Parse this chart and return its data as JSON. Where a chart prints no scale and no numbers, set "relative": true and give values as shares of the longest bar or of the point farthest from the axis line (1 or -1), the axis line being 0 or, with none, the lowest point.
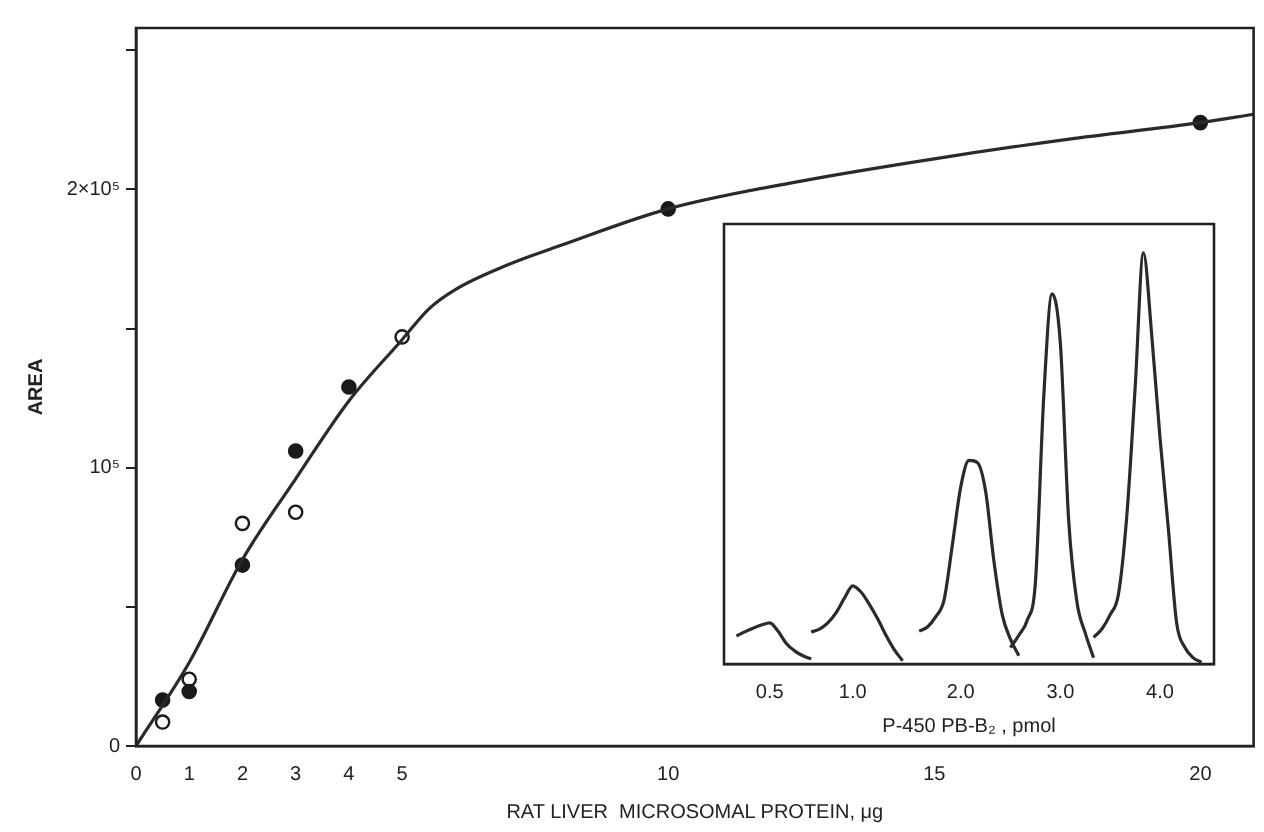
{
  "chart_data": [
    {
      "type": "scatter",
      "xlabel": "RAT LIVER  MICROSOMAL PROTEIN, μg",
      "ylabel": "AREA",
      "xlim": [
        0,
        21
      ],
      "ylim": [
        0,
        258000
      ],
      "xticks": [
        0,
        1,
        2,
        3,
        4,
        5,
        10,
        15,
        20
      ],
      "yticks": [
        {
          "value": 0,
          "label": "0"
        },
        {
          "value": 50000,
          "label": null
        },
        {
          "value": 100000,
          "label": "10⁵"
        },
        {
          "value": 150000,
          "label": null
        },
        {
          "value": 200000,
          "label": "2×10⁵"
        },
        {
          "value": 250000,
          "label": null
        }
      ],
      "grid": false,
      "legend": false,
      "marker": "circle",
      "series": [
        {
          "type": "line",
          "color": "#2a2a2a",
          "marker": "none",
          "x": [
            0,
            1,
            2,
            3,
            4,
            5,
            5.5,
            6,
            7,
            8,
            10,
            12.5,
            15,
            17.5,
            20,
            21
          ],
          "values": [
            0,
            30000,
            67000,
            96000,
            124000,
            146000,
            157000,
            164000,
            173000,
            180000,
            193000,
            203000,
            211000,
            218000,
            224000,
            227000
          ]
        },
        {
          "color": "#1a1a1a",
          "x": [
            0.5,
            1,
            2,
            3,
            4,
            10,
            20
          ],
          "values": [
            16500,
            19600,
            65000,
            106000,
            129000,
            193000,
            224000
          ]
        },
        {
          "color": "#ffffff",
          "x": [
            0.5,
            1,
            2,
            3,
            5
          ],
          "values": [
            8600,
            24000,
            80000,
            84000,
            147000
          ]
        }
      ]
    },
    {
      "type": "line",
      "relative": true,
      "xlabel": "P-450 PB-B₂ , pmol",
      "grid": false,
      "legend": false,
      "marker": "none",
      "categories": [
        null,
        null,
        null,
        null,
        null,
        "0.5",
        null,
        null,
        null,
        null,
        null,
        null,
        null,
        null,
        null,
        "1.0",
        null,
        null,
        null,
        null,
        null,
        null,
        null,
        null,
        null,
        null,
        null,
        null,
        "2.0",
        null,
        null,
        null,
        null,
        null,
        null,
        null,
        null,
        null,
        null,
        null,
        "3.0",
        null,
        null,
        null,
        null,
        null,
        null,
        null,
        null,
        null,
        null,
        null,
        "4.0",
        null,
        null,
        null,
        null,
        null,
        null
      ],
      "series": [
        {
          "color": "#2a2a2a",
          "values": [
            null,
            0.068,
            0.078,
            0.087,
            0.095,
            0.1,
            0.08,
            0.05,
            0.032,
            0.02,
            0.012,
            null,
            null,
            null,
            null,
            null,
            null,
            null,
            null,
            null,
            null,
            null,
            null,
            null,
            null,
            null,
            null,
            null,
            null,
            null,
            null,
            null,
            null,
            null,
            null,
            null,
            null,
            null,
            null,
            null,
            null,
            null,
            null,
            null,
            null,
            null,
            null,
            null,
            null,
            null,
            null,
            null,
            null,
            null,
            null,
            null,
            null,
            null,
            null
          ]
        },
        {
          "color": "#2a2a2a",
          "values": [
            null,
            null,
            null,
            null,
            null,
            null,
            null,
            null,
            null,
            null,
            0.078,
            0.085,
            0.1,
            0.125,
            0.16,
            0.19,
            0.175,
            0.145,
            0.11,
            0.07,
            0.035,
            0.008,
            null,
            null,
            null,
            null,
            null,
            null,
            null,
            null,
            null,
            null,
            null,
            null,
            null,
            null,
            null,
            null,
            null,
            null,
            null,
            null,
            null,
            null,
            null,
            null,
            null,
            null,
            null,
            null,
            null,
            null,
            null,
            null,
            null,
            null,
            null,
            null,
            null
          ]
        },
        {
          "color": "#2a2a2a",
          "values": [
            null,
            null,
            null,
            null,
            null,
            null,
            null,
            null,
            null,
            null,
            null,
            null,
            null,
            null,
            null,
            null,
            null,
            null,
            null,
            null,
            null,
            null,
            null,
            0.08,
            0.09,
            0.115,
            0.156,
            0.29,
            0.43,
            0.495,
            0.49,
            0.42,
            0.25,
            0.12,
            0.06,
            0.02,
            null,
            null,
            null,
            null,
            null,
            null,
            null,
            null,
            null,
            null,
            null,
            null,
            null,
            null,
            null,
            null,
            null,
            null,
            null,
            null,
            null,
            null,
            null
          ]
        },
        {
          "color": "#2a2a2a",
          "values": [
            null,
            null,
            null,
            null,
            null,
            null,
            null,
            null,
            null,
            null,
            null,
            null,
            null,
            null,
            null,
            null,
            null,
            null,
            null,
            null,
            null,
            null,
            null,
            null,
            null,
            null,
            null,
            null,
            null,
            null,
            null,
            null,
            null,
            null,
            0.04,
            0.07,
            0.106,
            0.2,
            0.65,
            0.9,
            0.78,
            0.35,
            0.15,
            0.075,
            0.015,
            null,
            null,
            null,
            null,
            null,
            null,
            null,
            null,
            null,
            null,
            null,
            null,
            null,
            null
          ]
        },
        {
          "color": "#2a2a2a",
          "values": [
            null,
            null,
            null,
            null,
            null,
            null,
            null,
            null,
            null,
            null,
            null,
            null,
            null,
            null,
            null,
            null,
            null,
            null,
            null,
            null,
            null,
            null,
            null,
            null,
            null,
            null,
            null,
            null,
            null,
            null,
            null,
            null,
            null,
            null,
            null,
            null,
            null,
            null,
            null,
            null,
            null,
            null,
            null,
            null,
            0.065,
            0.085,
            0.12,
            0.17,
            0.36,
            0.67,
            1.0,
            0.8,
            0.55,
            0.33,
            0.1,
            0.04,
            0.015,
            0.004,
            null
          ]
        }
      ]
    }
  ]
}
